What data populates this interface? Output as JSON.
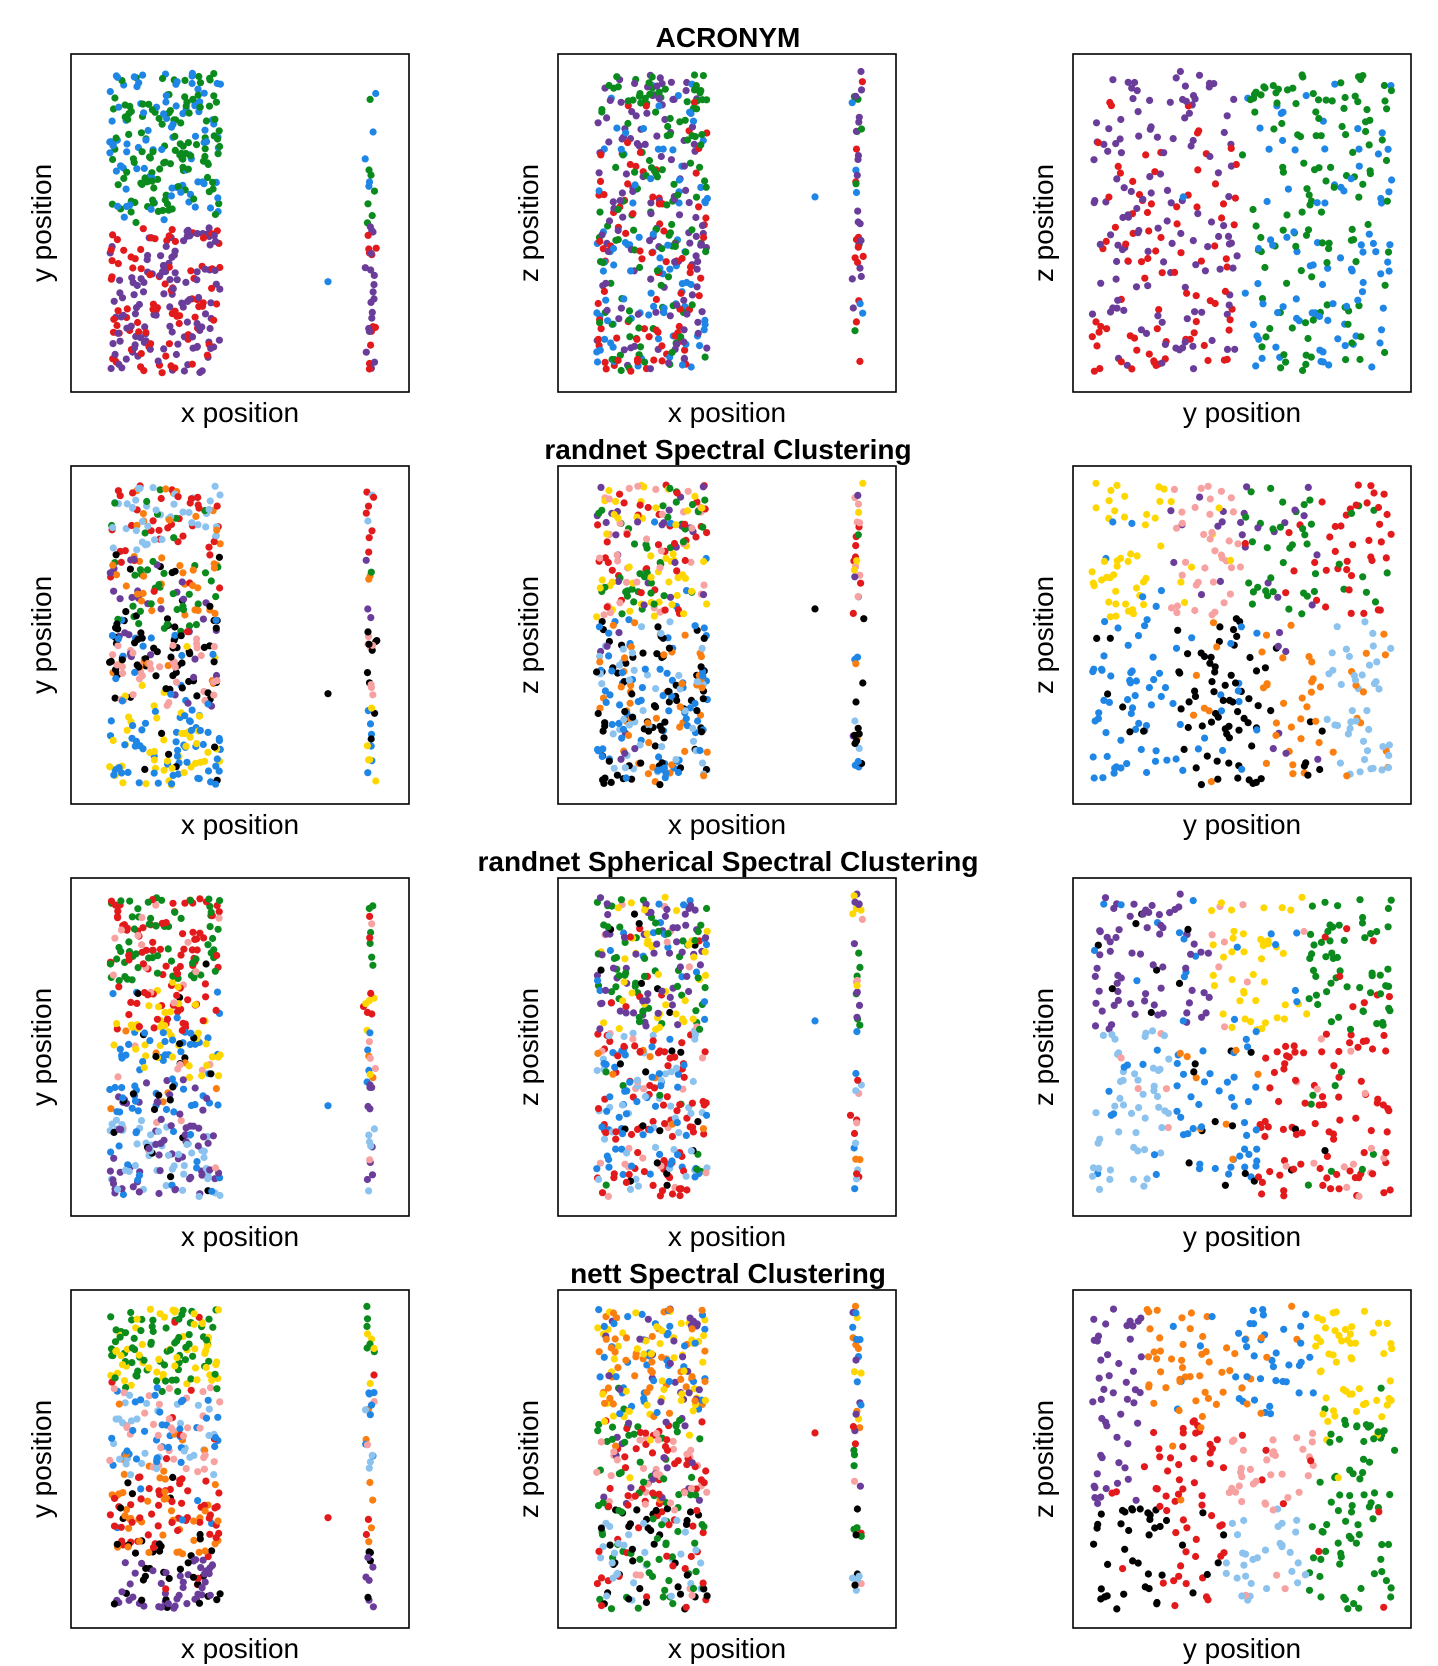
{
  "palette": {
    "purple": "#6a3d9a",
    "green": "#0b8a1d",
    "blue": "#1f86e6",
    "red": "#e31a1c",
    "light-blue": "#8cc2ee",
    "orange": "#fb7f10",
    "yellow": "#ffd700",
    "pink": "#f7a1a1",
    "black": "#000000"
  },
  "chart_data": [
    {
      "type": "scatter",
      "title": "ACRONYM",
      "axis_ticks": "none",
      "panels": [
        {
          "xlabel": "x position",
          "ylabel": "y position",
          "view": "xy"
        },
        {
          "xlabel": "x position",
          "ylabel": "z position",
          "view": "xz"
        },
        {
          "xlabel": "y position",
          "ylabel": "z position",
          "view": "yz"
        }
      ],
      "clusters": [
        {
          "color": "green",
          "region": "upper half of y-axis, upper-right of y-z plane"
        },
        {
          "color": "blue",
          "region": "top of y-axis, lower-right of y-z plane"
        },
        {
          "color": "red",
          "region": "lower y, lower-left of y-z plane"
        },
        {
          "color": "purple",
          "region": "lower y, upper-left of y-z plane"
        }
      ]
    },
    {
      "type": "scatter",
      "title": "randnet Spectral Clustering",
      "axis_ticks": "none",
      "panels": [
        {
          "xlabel": "x position",
          "ylabel": "y position",
          "view": "xy"
        },
        {
          "xlabel": "x position",
          "ylabel": "z position",
          "view": "xz"
        },
        {
          "xlabel": "y position",
          "ylabel": "z position",
          "view": "yz"
        }
      ],
      "clusters": [
        {
          "color": "yellow"
        },
        {
          "color": "pink"
        },
        {
          "color": "green"
        },
        {
          "color": "red"
        },
        {
          "color": "purple"
        },
        {
          "color": "blue"
        },
        {
          "color": "black"
        },
        {
          "color": "orange"
        },
        {
          "color": "light-blue"
        }
      ]
    },
    {
      "type": "scatter",
      "title": "randnet Spherical Spectral Clustering",
      "axis_ticks": "none",
      "panels": [
        {
          "xlabel": "x position",
          "ylabel": "y position",
          "view": "xy"
        },
        {
          "xlabel": "x position",
          "ylabel": "z position",
          "view": "xz"
        },
        {
          "xlabel": "y position",
          "ylabel": "z position",
          "view": "yz"
        }
      ],
      "clusters": [
        {
          "color": "purple"
        },
        {
          "color": "yellow"
        },
        {
          "color": "green"
        },
        {
          "color": "blue"
        },
        {
          "color": "red"
        },
        {
          "color": "light-blue"
        },
        {
          "color": "pink"
        },
        {
          "color": "black"
        },
        {
          "color": "orange"
        }
      ]
    },
    {
      "type": "scatter",
      "title": "nett Spectral Clustering",
      "axis_ticks": "none",
      "panels": [
        {
          "xlabel": "x position",
          "ylabel": "y position",
          "view": "xy"
        },
        {
          "xlabel": "x position",
          "ylabel": "z position",
          "view": "xz"
        },
        {
          "xlabel": "y position",
          "ylabel": "z position",
          "view": "yz"
        }
      ],
      "clusters": [
        {
          "color": "purple"
        },
        {
          "color": "orange"
        },
        {
          "color": "blue"
        },
        {
          "color": "yellow"
        },
        {
          "color": "black"
        },
        {
          "color": "red"
        },
        {
          "color": "pink"
        },
        {
          "color": "light-blue"
        },
        {
          "color": "green"
        }
      ]
    }
  ]
}
